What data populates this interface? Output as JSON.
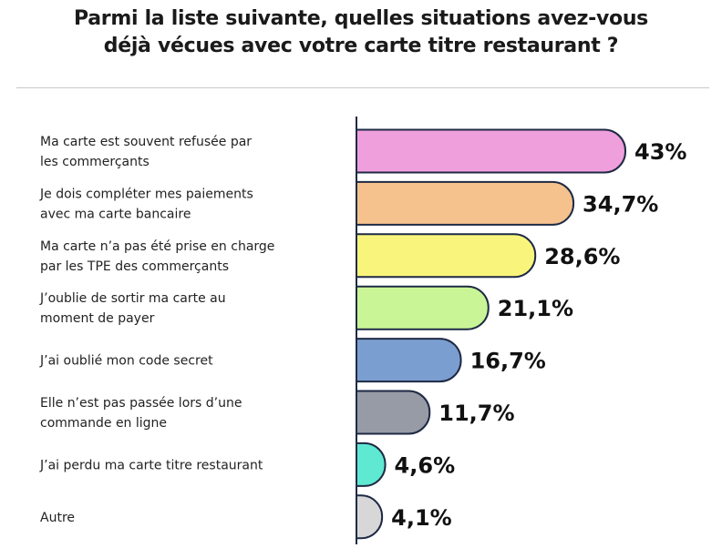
{
  "title_lines": [
    "Parmi la liste suivante, quelles situations avez-vous",
    "déjà vécues avec votre carte titre restaurant ?"
  ],
  "chart_data": {
    "type": "bar",
    "orientation": "horizontal",
    "title": "Parmi la liste suivante, quelles situations avez-vous déjà vécues avec votre carte titre restaurant ?",
    "categories": [
      [
        "Ma carte est souvent refusée par",
        "les commerçants"
      ],
      [
        "Je dois compléter mes paiements",
        "avec ma carte bancaire"
      ],
      [
        "Ma carte n’a pas été prise en charge",
        "par les TPE des commerçants"
      ],
      [
        "J’oublie de sortir ma carte au",
        "moment de payer"
      ],
      [
        "J’ai oublié mon code secret"
      ],
      [
        "Elle n’est pas passée lors d’une",
        "commande en ligne"
      ],
      [
        "J’ai perdu ma carte titre restaurant"
      ],
      [
        "Autre"
      ]
    ],
    "values": [
      43,
      34.7,
      28.6,
      21.1,
      16.7,
      11.7,
      4.6,
      4.1
    ],
    "value_labels": [
      "43%",
      "34,7%",
      "28,6%",
      "21,1%",
      "16,7%",
      "11,7%",
      "4,6%",
      "4,1%"
    ],
    "colors": [
      "#ef9fdc",
      "#f5c28e",
      "#f9f57c",
      "#c9f596",
      "#7b9ed0",
      "#969ba6",
      "#5fe8d2",
      "#d7d7d7"
    ],
    "xlabel": "",
    "ylabel": "",
    "xlim": [
      0,
      43
    ],
    "grid": false,
    "legend": false
  }
}
